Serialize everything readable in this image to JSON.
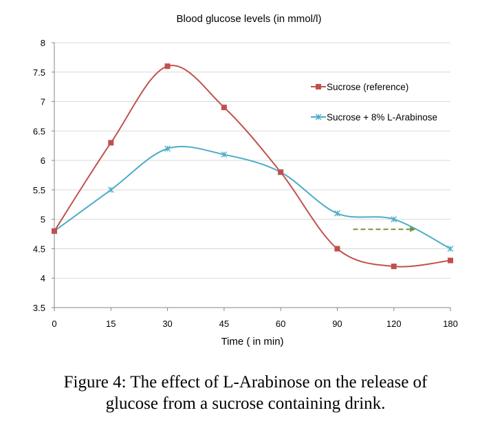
{
  "chart_data": {
    "type": "line",
    "title": "Blood glucose levels (in mmol/l)",
    "xlabel": "Time ( in min)",
    "ylabel": "",
    "categories": [
      "0",
      "15",
      "30",
      "45",
      "60",
      "90",
      "120",
      "180"
    ],
    "ylim": [
      3.5,
      8
    ],
    "yticks": [
      "3.5",
      "4",
      "4.5",
      "5",
      "5.5",
      "6",
      "6.5",
      "7",
      "7.5",
      "8"
    ],
    "grid": true,
    "legend_position": "top-right",
    "series": [
      {
        "name": "Sucrose (reference)",
        "values": [
          4.8,
          6.3,
          7.6,
          6.9,
          5.8,
          4.5,
          4.2,
          4.3
        ],
        "color": "#c0504d",
        "marker": "square"
      },
      {
        "name": "Sucrose + 8% L-Arabinose",
        "values": [
          4.8,
          5.5,
          6.2,
          6.1,
          5.8,
          5.1,
          5.0,
          4.5
        ],
        "color": "#4bacc6",
        "marker": "star"
      }
    ],
    "annotations": [
      {
        "type": "dashed-arrow",
        "y": 4.83,
        "x_from_category": 5.28,
        "x_to_category": 6.37,
        "color": "#77933c"
      }
    ]
  },
  "caption": {
    "line1": "Figure 4: The effect of L-Arabinose on the release of",
    "line2": "glucose from a sucrose containing drink."
  }
}
